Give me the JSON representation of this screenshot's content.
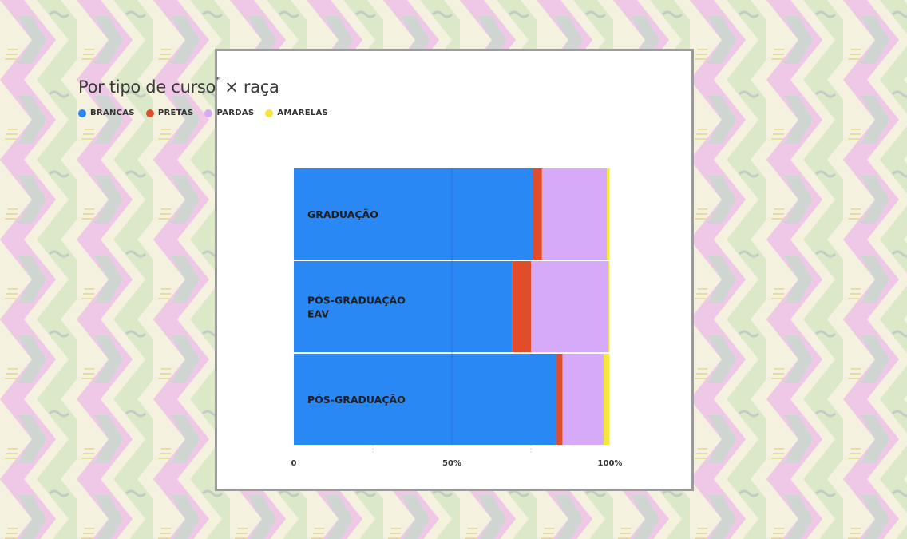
{
  "title": {
    "text": "Por tipo de curso",
    "superscript": "*",
    "suffix": " × raça"
  },
  "colors": {
    "BRANCAS": "#2a88f5",
    "PRETAS": "#e14d2a",
    "PARDAS": "#d6a9f9",
    "AMARELAS": "#f5e53d"
  },
  "legend": [
    {
      "label": "BRANCAS",
      "color": "#2a88f5"
    },
    {
      "label": "PRETAS",
      "color": "#e14d2a"
    },
    {
      "label": "PARDAS",
      "color": "#d6a9f9"
    },
    {
      "label": "AMARELAS",
      "color": "#f5e53d"
    }
  ],
  "chart_data": {
    "type": "bar",
    "orientation": "horizontal",
    "stacked": true,
    "categories": [
      [
        "GRADUAÇÃO"
      ],
      [
        "PÓS-GRADUAÇÃO",
        "EAV"
      ],
      [
        "PÓS-GRADUAÇÃO"
      ]
    ],
    "series": [
      {
        "name": "BRANCAS",
        "values": [
          75.5,
          69,
          83
        ]
      },
      {
        "name": "PRETAS",
        "values": [
          3,
          6,
          2
        ]
      },
      {
        "name": "PARDAS",
        "values": [
          20.5,
          24.5,
          13
        ]
      },
      {
        "name": "AMARELAS",
        "values": [
          1,
          0.5,
          2
        ]
      }
    ],
    "x_ticks": [
      "0",
      "50%",
      "100%"
    ],
    "xlim": [
      0,
      100
    ],
    "title": "Por tipo de curso* × raça",
    "xlabel": "",
    "ylabel": "",
    "legend_position": "top-left",
    "grid": true
  }
}
